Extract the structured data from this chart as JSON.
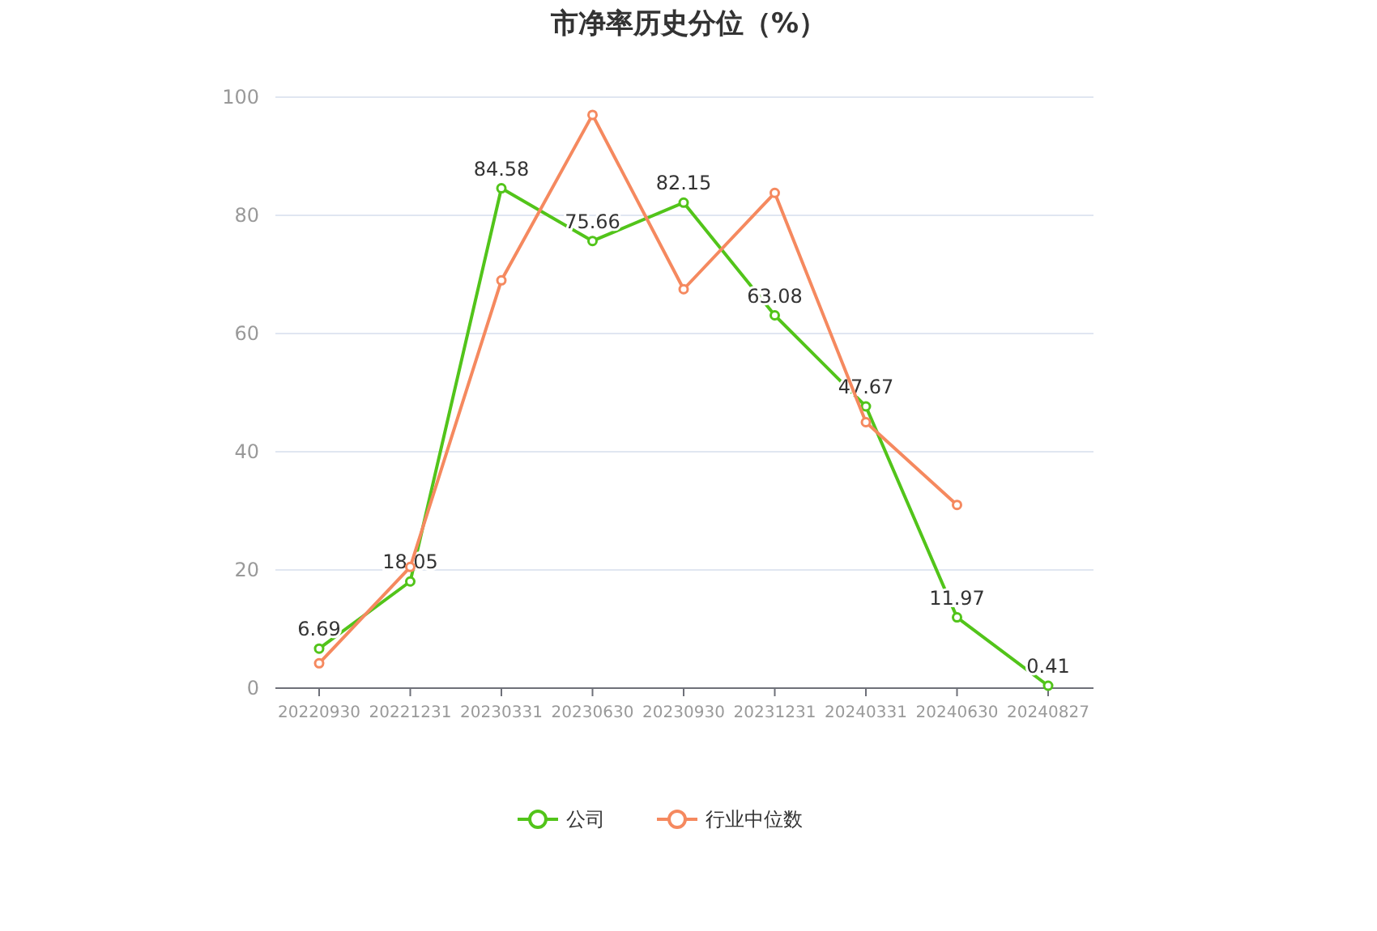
{
  "chart_data": {
    "type": "line",
    "title": "市净率历史分位（%）",
    "categories": [
      "20220930",
      "20221231",
      "20230331",
      "20230630",
      "20230930",
      "20231231",
      "20240331",
      "20240630",
      "20240827"
    ],
    "series": [
      {
        "name": "公司",
        "color": "#52c41a",
        "values": [
          6.69,
          18.05,
          84.58,
          75.66,
          82.15,
          63.08,
          47.67,
          11.97,
          0.41
        ],
        "value_labels": [
          "6.69",
          "18.05",
          "84.58",
          "75.66",
          "82.15",
          "63.08",
          "47.67",
          "11.97",
          "0.41"
        ]
      },
      {
        "name": "行业中位数",
        "color": "#f5895f",
        "values": [
          4.2,
          20.5,
          69,
          97,
          67.5,
          83.8,
          45,
          31,
          null
        ]
      }
    ],
    "ylim": [
      0,
      100
    ],
    "yticks": [
      0,
      20,
      40,
      60,
      80,
      100
    ],
    "grid": "y",
    "legend": "bottom",
    "marker": "circle",
    "line_style": "solid"
  }
}
